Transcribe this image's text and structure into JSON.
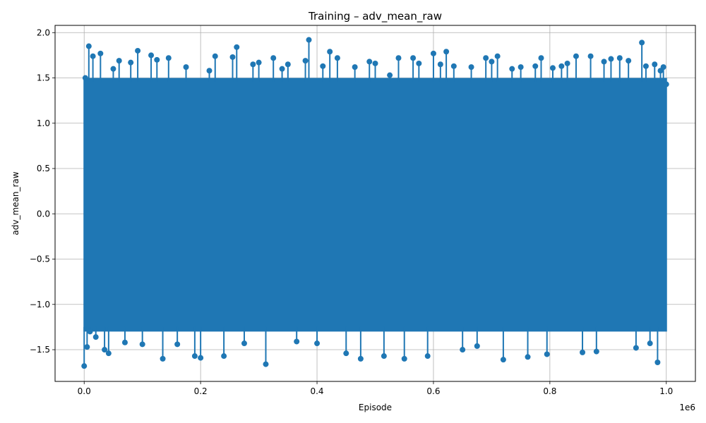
{
  "chart_data": {
    "type": "line",
    "title": "Training – adv_mean_raw",
    "xlabel": "Episode",
    "ylabel": "adv_mean_raw",
    "x_offset_text": "1e6",
    "xlim": [
      -50000,
      1050000
    ],
    "ylim": [
      -1.85,
      2.08
    ],
    "x_ticks": [
      0,
      200000,
      400000,
      600000,
      800000,
      1000000
    ],
    "x_tick_labels": [
      "0.0",
      "0.2",
      "0.4",
      "0.6",
      "0.8",
      "1.0"
    ],
    "y_ticks": [
      -1.5,
      -1.0,
      -0.5,
      0.0,
      0.5,
      1.0,
      1.5,
      2.0
    ],
    "y_tick_labels": [
      "−1.5",
      "−1.0",
      "−0.5",
      "0.0",
      "0.5",
      "1.0",
      "1.5",
      "2.0"
    ],
    "grid": true,
    "marker": "circle",
    "color": "#1f77b4",
    "series": [
      {
        "x": [
          0,
          2000,
          5000,
          8000,
          10000,
          15000,
          20000,
          28000,
          35000,
          42000,
          50000,
          60000,
          70000,
          80000,
          92000,
          100000,
          115000,
          125000,
          135000,
          145000,
          160000,
          175000,
          190000,
          200000,
          215000,
          225000,
          240000,
          255000,
          262000,
          275000,
          290000,
          300000,
          312000,
          325000,
          340000,
          350000,
          365000,
          380000,
          386000,
          400000,
          410000,
          422000,
          435000,
          450000,
          465000,
          475000,
          490000,
          500000,
          515000,
          525000,
          540000,
          550000,
          565000,
          575000,
          590000,
          600000,
          612000,
          622000,
          635000,
          650000,
          665000,
          675000,
          690000,
          700000,
          710000,
          720000,
          735000,
          750000,
          762000,
          775000,
          785000,
          795000,
          805000,
          820000,
          830000,
          845000,
          856000,
          870000,
          880000,
          893000,
          905000,
          920000,
          935000,
          948000,
          958000,
          965000,
          972000,
          980000,
          985000,
          990000,
          995000,
          1000000
        ],
        "y": [
          -1.68,
          1.5,
          -1.47,
          1.85,
          -1.3,
          1.74,
          -1.36,
          1.77,
          -1.5,
          -1.54,
          1.6,
          1.69,
          -1.42,
          1.67,
          1.8,
          -1.44,
          1.75,
          1.7,
          -1.6,
          1.72,
          -1.44,
          1.62,
          -1.57,
          -1.59,
          1.58,
          1.74,
          -1.57,
          1.73,
          1.84,
          -1.43,
          1.65,
          1.67,
          -1.66,
          1.72,
          1.6,
          1.65,
          -1.41,
          1.69,
          1.92,
          -1.43,
          1.63,
          1.79,
          1.72,
          -1.54,
          1.62,
          -1.6,
          1.68,
          1.66,
          -1.57,
          1.53,
          1.72,
          -1.6,
          1.72,
          1.66,
          -1.57,
          1.77,
          1.65,
          1.79,
          1.63,
          -1.5,
          1.62,
          -1.46,
          1.72,
          1.68,
          1.74,
          -1.61,
          1.6,
          1.62,
          -1.58,
          1.63,
          1.72,
          -1.55,
          1.61,
          1.63,
          1.66,
          1.74,
          -1.53,
          1.74,
          -1.52,
          1.68,
          1.71,
          1.72,
          1.69,
          -1.48,
          1.89,
          1.63,
          -1.43,
          1.65,
          -1.64,
          1.58,
          1.62,
          1.43
        ]
      }
    ]
  }
}
